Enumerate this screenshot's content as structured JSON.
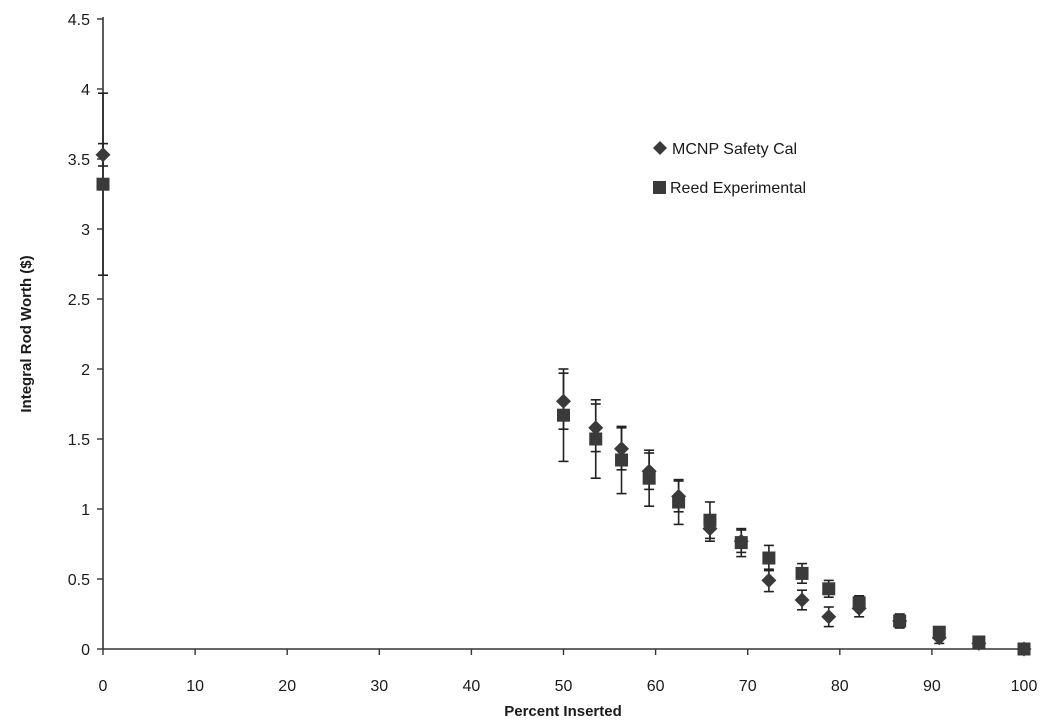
{
  "chart_data": {
    "type": "scatter",
    "title": "",
    "xlabel": "Percent Inserted",
    "ylabel": "Integral Rod Worth ($)",
    "xlim": [
      0,
      100
    ],
    "ylim": [
      0,
      4.5
    ],
    "xticks": [
      0,
      10,
      20,
      30,
      40,
      50,
      60,
      70,
      80,
      90,
      100
    ],
    "yticks": [
      0,
      0.5,
      1,
      1.5,
      2,
      2.5,
      3,
      3.5,
      4,
      4.5
    ],
    "xtick_labels": [
      "0",
      "10",
      "20",
      "30",
      "40",
      "50",
      "60",
      "70",
      "80",
      "90",
      "100"
    ],
    "ytick_labels": [
      "0",
      "0.5",
      "1",
      "1.5",
      "2",
      "2.5",
      "3",
      "3.5",
      "4",
      "4.5"
    ],
    "grid": false,
    "legend_position": "top-right",
    "error_bars": true,
    "series": [
      {
        "name": "MCNP Safety Cal",
        "marker": "diamond",
        "color": "#3a3a3a",
        "x": [
          0,
          50,
          53.5,
          56.3,
          59.3,
          62.5,
          65.9,
          69.3,
          72.3,
          75.9,
          78.8,
          82.1,
          86.5,
          90.8,
          95.1,
          100
        ],
        "y": [
          3.53,
          1.77,
          1.58,
          1.43,
          1.27,
          1.09,
          0.86,
          0.77,
          0.49,
          0.35,
          0.23,
          0.29,
          0.2,
          0.08,
          0.04,
          0.0
        ],
        "err": [
          0.08,
          0.2,
          0.17,
          0.15,
          0.13,
          0.11,
          0.09,
          0.08,
          0.08,
          0.07,
          0.07,
          0.06,
          0.05,
          0.04,
          0.02,
          0.0
        ]
      },
      {
        "name": "Reed Experimental",
        "marker": "square",
        "color": "#3a3a3a",
        "x": [
          0,
          50,
          53.5,
          56.3,
          59.3,
          62.5,
          65.9,
          69.3,
          72.3,
          75.9,
          78.8,
          82.1,
          86.5,
          90.8,
          95.1,
          100
        ],
        "y": [
          3.32,
          1.67,
          1.5,
          1.35,
          1.22,
          1.05,
          0.92,
          0.76,
          0.65,
          0.54,
          0.43,
          0.33,
          0.2,
          0.12,
          0.05,
          0.0
        ],
        "err": [
          0.65,
          0.33,
          0.28,
          0.24,
          0.2,
          0.16,
          0.13,
          0.1,
          0.09,
          0.07,
          0.06,
          0.05,
          0.04,
          0.03,
          0.02,
          0.0
        ]
      }
    ]
  }
}
